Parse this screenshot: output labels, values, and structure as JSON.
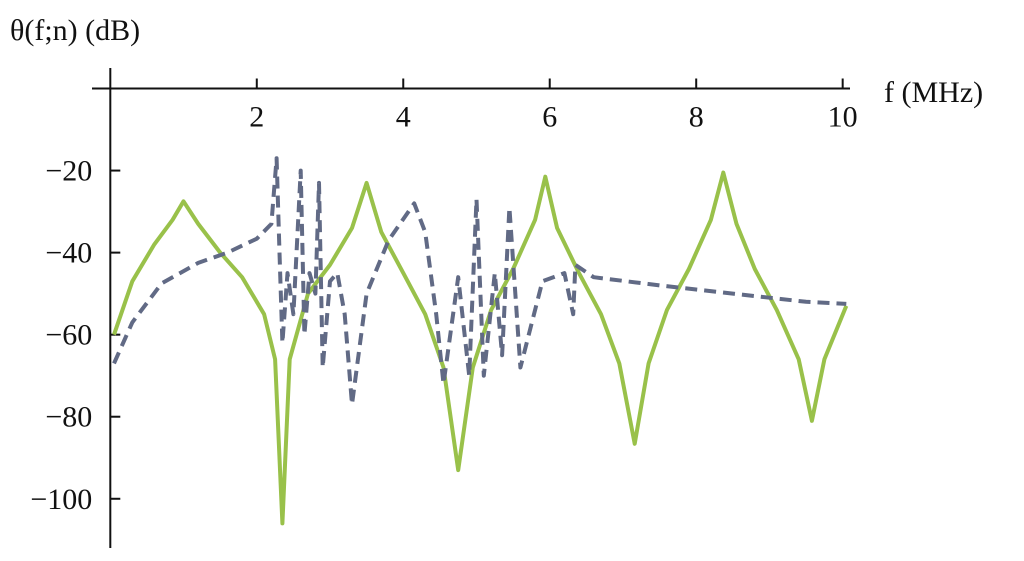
{
  "chart_data": {
    "type": "line",
    "ylabel": "θ(f;n) (dB)",
    "xlabel": "f (MHz)",
    "xlim": [
      -0.25,
      10.1
    ],
    "ylim": [
      -112,
      5
    ],
    "xticks": [
      2,
      4,
      6,
      8,
      10
    ],
    "yticks": [
      {
        "value": -100,
        "label": "−100"
      },
      {
        "value": -80,
        "label": "−80"
      },
      {
        "value": -60,
        "label": "−60"
      },
      {
        "value": -40,
        "label": "−40"
      },
      {
        "value": -20,
        "label": "−20"
      }
    ],
    "series": [
      {
        "color": "#99c14a",
        "dash": false,
        "x": [
          0.05,
          0.3,
          0.6,
          0.85,
          1.0,
          1.2,
          1.5,
          1.8,
          2.1,
          2.25,
          2.35,
          2.45,
          2.7,
          3.0,
          3.3,
          3.5,
          3.7,
          4.0,
          4.3,
          4.55,
          4.75,
          4.95,
          5.2,
          5.5,
          5.8,
          5.94,
          6.1,
          6.4,
          6.7,
          6.95,
          7.16,
          7.35,
          7.6,
          7.9,
          8.2,
          8.37,
          8.55,
          8.8,
          9.1,
          9.4,
          9.58,
          9.75,
          10.05
        ],
        "values": [
          -60,
          -47,
          -38,
          -32,
          -27.5,
          -33,
          -40,
          -46,
          -55,
          -66,
          -106,
          -66,
          -50,
          -43,
          -34,
          -23,
          -35,
          -45,
          -55,
          -68,
          -93,
          -68,
          -54,
          -44,
          -32,
          -21.5,
          -34,
          -45,
          -55,
          -67,
          -86.6,
          -67,
          -54,
          -44,
          -32,
          -20.5,
          -33,
          -44,
          -54,
          -66,
          -81,
          -66,
          -53
        ]
      },
      {
        "color": "#616a85",
        "dash": true,
        "x": [
          0.05,
          0.3,
          0.7,
          1.2,
          1.6,
          2.0,
          2.2,
          2.27,
          2.31,
          2.35,
          2.42,
          2.5,
          2.6,
          2.65,
          2.72,
          2.8,
          2.85,
          2.9,
          3.0,
          3.1,
          3.2,
          3.3,
          3.5,
          3.8,
          4.15,
          4.3,
          4.45,
          4.55,
          4.75,
          4.9,
          5.0,
          5.1,
          5.25,
          5.35,
          5.45,
          5.6,
          5.9,
          6.2,
          6.32,
          6.35,
          6.6,
          7.5,
          8.5,
          9.5,
          10.05
        ],
        "values": [
          -67,
          -57,
          -47.5,
          -42.5,
          -40,
          -36.6,
          -33,
          -17,
          -40,
          -62,
          -45,
          -55,
          -20,
          -60,
          -45,
          -50,
          -23,
          -68,
          -47,
          -45,
          -55,
          -77,
          -50,
          -37,
          -28,
          -35,
          -55,
          -72,
          -46,
          -70,
          -27,
          -70,
          -45,
          -65,
          -29,
          -68,
          -47,
          -45,
          -55,
          -43,
          -46,
          -48,
          -50,
          -52,
          -52.5
        ]
      }
    ]
  }
}
